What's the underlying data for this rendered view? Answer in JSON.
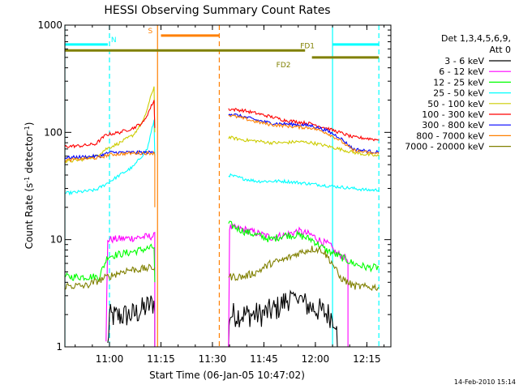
{
  "chart_data": {
    "type": "line",
    "title": "HESSI Observing Summary Count Rates",
    "xlabel": "Start Time (06-Jan-05 10:47:02)",
    "ylabel_main": "Count Rate (s",
    "ylabel_sup1": "-1",
    "ylabel_mid": " detector",
    "ylabel_sup2": "-1",
    "ylabel_end": ")",
    "yscale": "log",
    "ylim": [
      1,
      1000
    ],
    "xlim_minutes": [
      0,
      95
    ],
    "x_ticks": [
      {
        "label": "11:00",
        "minutes": 13
      },
      {
        "label": "11:15",
        "minutes": 28
      },
      {
        "label": "11:30",
        "minutes": 43
      },
      {
        "label": "11:45",
        "minutes": 58
      },
      {
        "label": "12:00",
        "minutes": 73
      },
      {
        "label": "12:15",
        "minutes": 88
      }
    ],
    "y_ticks": [
      {
        "label": "1",
        "value": 1
      },
      {
        "label": "10",
        "value": 10
      },
      {
        "label": "100",
        "value": 100
      },
      {
        "label": "1000",
        "value": 1000
      }
    ],
    "legend_header": [
      "Det 1,3,4,5,6,9,",
      "Att 0"
    ],
    "legend_placement": "right",
    "series": [
      {
        "name": "3 - 6 keV",
        "color": "#000000",
        "segments": [
          [
            [
              12.5,
              1
            ],
            [
              13,
              1.9
            ],
            [
              20,
              2
            ],
            [
              26.2,
              2.6
            ],
            [
              26.2,
              1
            ]
          ],
          [
            [
              47.7,
              1
            ],
            [
              48,
              2
            ],
            [
              57,
              2
            ],
            [
              59,
              2.1
            ],
            [
              62,
              2.3
            ],
            [
              66,
              3
            ],
            [
              68,
              2.9
            ],
            [
              70,
              2.5
            ],
            [
              74,
              2.2
            ],
            [
              77,
              2.0
            ],
            [
              79,
              1.8
            ],
            [
              79.4,
              1
            ]
          ]
        ]
      },
      {
        "name": "6 - 12 keV",
        "color": "#ff00ff",
        "segments": [
          [
            [
              12,
              1
            ],
            [
              12.5,
              10
            ],
            [
              17,
              10.2
            ],
            [
              22,
              10.5
            ],
            [
              26.2,
              10.8
            ],
            [
              26.2,
              1
            ]
          ],
          [
            [
              47.7,
              1
            ],
            [
              48,
              13
            ],
            [
              52,
              12.5
            ],
            [
              56,
              11.5
            ],
            [
              60,
              10.5
            ],
            [
              64,
              11
            ],
            [
              68,
              12
            ],
            [
              72,
              11
            ],
            [
              75,
              9.5
            ],
            [
              77,
              9
            ],
            [
              79,
              7.5
            ],
            [
              81,
              7
            ],
            [
              82.5,
              6.5
            ],
            [
              82.5,
              1
            ]
          ]
        ]
      },
      {
        "name": "12 - 25 keV",
        "color": "#00ff00",
        "segments": [
          [
            [
              0,
              4.5
            ],
            [
              5,
              4.5
            ],
            [
              10,
              4.5
            ],
            [
              12.5,
              7
            ],
            [
              18,
              7.5
            ],
            [
              22,
              8
            ],
            [
              26,
              8.5
            ],
            [
              26.2,
              4
            ]
          ],
          [
            [
              47.7,
              14
            ],
            [
              52,
              12
            ],
            [
              56,
              11
            ],
            [
              60,
              10
            ],
            [
              64,
              11
            ],
            [
              68,
              11
            ],
            [
              72,
              10
            ],
            [
              76,
              8
            ],
            [
              80,
              7
            ],
            [
              84,
              6
            ],
            [
              88,
              5.5
            ],
            [
              91.5,
              5.5
            ]
          ]
        ]
      },
      {
        "name": "25 - 50 keV",
        "color": "#00ffff",
        "segments": [
          [
            [
              0,
              27
            ],
            [
              5,
              28
            ],
            [
              9,
              29
            ],
            [
              12,
              33
            ],
            [
              16,
              40
            ],
            [
              20,
              48
            ],
            [
              24,
              70
            ],
            [
              26,
              130
            ],
            [
              26.2,
              60
            ]
          ],
          [
            [
              47.7,
              40
            ],
            [
              52,
              37
            ],
            [
              56,
              35
            ],
            [
              60,
              35
            ],
            [
              64,
              35
            ],
            [
              68,
              34
            ],
            [
              72,
              33
            ],
            [
              76,
              32
            ],
            [
              80,
              31
            ],
            [
              84,
              30
            ],
            [
              88,
              29
            ],
            [
              91.5,
              29
            ]
          ]
        ]
      },
      {
        "name": "50 - 100 keV",
        "color": "#cccc00",
        "segments": [
          [
            [
              0,
              53
            ],
            [
              5,
              56
            ],
            [
              9,
              60
            ],
            [
              12,
              70
            ],
            [
              16,
              80
            ],
            [
              20,
              95
            ],
            [
              23,
              130
            ],
            [
              26,
              270
            ],
            [
              26.2,
              100
            ]
          ],
          [
            [
              47.7,
              90
            ],
            [
              52,
              85
            ],
            [
              56,
              83
            ],
            [
              60,
              80
            ],
            [
              64,
              80
            ],
            [
              68,
              82
            ],
            [
              72,
              80
            ],
            [
              76,
              75
            ],
            [
              80,
              70
            ],
            [
              84,
              65
            ],
            [
              88,
              62
            ],
            [
              91.5,
              60
            ]
          ]
        ]
      },
      {
        "name": "100 - 300 keV",
        "color": "#ff0000",
        "segments": [
          [
            [
              0,
              74
            ],
            [
              5,
              75
            ],
            [
              9,
              78
            ],
            [
              12,
              95
            ],
            [
              16,
              100
            ],
            [
              20,
              110
            ],
            [
              23,
              125
            ],
            [
              26,
              200
            ],
            [
              26.2,
              110
            ]
          ],
          [
            [
              47.7,
              165
            ],
            [
              52,
              160
            ],
            [
              56,
              150
            ],
            [
              60,
              140
            ],
            [
              64,
              130
            ],
            [
              68,
              125
            ],
            [
              72,
              120
            ],
            [
              76,
              110
            ],
            [
              80,
              100
            ],
            [
              84,
              90
            ],
            [
              88,
              88
            ],
            [
              91.5,
              85
            ]
          ]
        ]
      },
      {
        "name": "300 - 800 keV",
        "color": "#0000ff",
        "segments": [
          [
            [
              0,
              58
            ],
            [
              10,
              60
            ],
            [
              13,
              65
            ],
            [
              20,
              65
            ],
            [
              26.2,
              65
            ]
          ],
          [
            [
              47.7,
              150
            ],
            [
              52,
              140
            ],
            [
              56,
              130
            ],
            [
              60,
              122
            ],
            [
              64,
              120
            ],
            [
              68,
              118
            ],
            [
              72,
              115
            ],
            [
              76,
              105
            ],
            [
              80,
              90
            ],
            [
              84,
              70
            ],
            [
              88,
              67
            ],
            [
              91.5,
              65
            ]
          ]
        ]
      },
      {
        "name": "800 - 7000 keV",
        "color": "#ff8000",
        "segments": [
          [
            [
              0,
              55
            ],
            [
              10,
              58
            ],
            [
              13,
              62
            ],
            [
              20,
              64
            ],
            [
              26.2,
              64
            ],
            [
              26.2,
              20
            ]
          ],
          [
            [
              47.7,
              145
            ],
            [
              52,
              135
            ],
            [
              56,
              125
            ],
            [
              60,
              118
            ],
            [
              64,
              115
            ],
            [
              68,
              112
            ],
            [
              72,
              110
            ],
            [
              76,
              100
            ],
            [
              80,
              85
            ],
            [
              84,
              68
            ],
            [
              88,
              65
            ],
            [
              91.5,
              63
            ]
          ]
        ]
      },
      {
        "name": "7000 - 20000 keV",
        "color": "#808000",
        "segments": [
          [
            [
              0,
              3.7
            ],
            [
              6,
              3.7
            ],
            [
              12.5,
              4.5
            ],
            [
              18,
              5.2
            ],
            [
              22,
              5.3
            ],
            [
              26.2,
              5.5
            ]
          ],
          [
            [
              47.7,
              4.5
            ],
            [
              52,
              4.5
            ],
            [
              56,
              5
            ],
            [
              60,
              6
            ],
            [
              64,
              6.5
            ],
            [
              68,
              7.5
            ],
            [
              72,
              8.2
            ],
            [
              75,
              8
            ],
            [
              78,
              6
            ],
            [
              80,
              4.5
            ],
            [
              84,
              3.7
            ],
            [
              88,
              3.6
            ],
            [
              91.5,
              3.6
            ]
          ]
        ]
      }
    ],
    "flag_bars": [
      {
        "label": "N",
        "color": "#00ffff",
        "y": 660,
        "segments": [
          [
            0,
            12.5
          ],
          [
            78,
            91.5
          ]
        ]
      },
      {
        "label": "S",
        "color": "#ff8000",
        "y": 800,
        "segments": [
          [
            28,
            45
          ]
        ]
      },
      {
        "label": "FD1",
        "color": "#808000",
        "y": 580,
        "segments": [
          [
            0,
            70
          ]
        ]
      },
      {
        "label": "FD2",
        "color": "#808000",
        "y": 500,
        "segments": [
          [
            72,
            91.5
          ]
        ]
      }
    ],
    "vertical_markers": [
      {
        "minutes": 0,
        "color": "#00ffff",
        "style": "solid"
      },
      {
        "minutes": 13,
        "color": "#00ffff",
        "style": "dashed"
      },
      {
        "minutes": 27,
        "color": "#ff8000",
        "style": "solid"
      },
      {
        "minutes": 45,
        "color": "#ff8000",
        "style": "dashed"
      },
      {
        "minutes": 78,
        "color": "#00ffff",
        "style": "solid"
      },
      {
        "minutes": 91.5,
        "color": "#00ffff",
        "style": "dashed"
      }
    ],
    "footer_timestamp": "14-Feb-2010 15:14"
  }
}
